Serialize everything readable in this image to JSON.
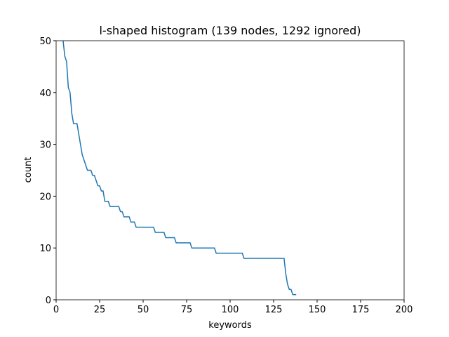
{
  "chart_data": {
    "type": "line",
    "title": "l-shaped histogram (139 nodes, 1292 ignored)",
    "xlabel": "keywords",
    "ylabel": "count",
    "xlim": [
      0,
      200
    ],
    "ylim": [
      0,
      50
    ],
    "xticks": [
      0,
      25,
      50,
      75,
      100,
      125,
      150,
      175,
      200
    ],
    "yticks": [
      0,
      10,
      20,
      30,
      40,
      50
    ],
    "grid": false,
    "series": [
      {
        "color": "#1f77b4",
        "x": [
          4,
          5,
          6,
          7,
          8,
          9,
          10,
          12,
          13,
          14,
          15,
          16,
          17,
          18,
          20,
          21,
          22,
          23,
          24,
          25,
          26,
          27,
          28,
          30,
          31,
          36,
          37,
          38,
          39,
          42,
          43,
          45,
          46,
          56,
          57,
          62,
          63,
          68,
          69,
          77,
          78,
          91,
          92,
          107,
          108,
          131,
          132,
          133,
          134,
          135,
          136,
          138
        ],
        "values": [
          50,
          47,
          46,
          41,
          40,
          36,
          34,
          34,
          32,
          30,
          28,
          27,
          26,
          25,
          25,
          24,
          24,
          23,
          22,
          22,
          21,
          21,
          19,
          19,
          18,
          18,
          17,
          17,
          16,
          16,
          15,
          15,
          14,
          14,
          13,
          13,
          12,
          12,
          11,
          11,
          10,
          10,
          9,
          9,
          8,
          8,
          5,
          3,
          2,
          2,
          1,
          1
        ]
      }
    ]
  }
}
